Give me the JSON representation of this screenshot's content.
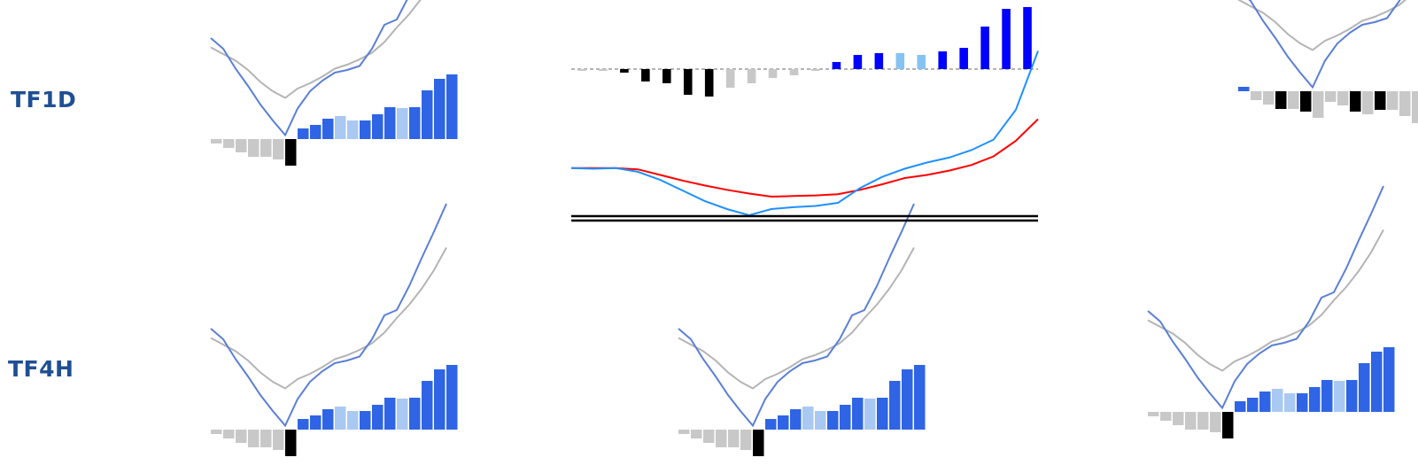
{
  "rows": [
    {
      "label": "TF1D"
    },
    {
      "label": "TF4H"
    }
  ],
  "colors": {
    "label": "#1f4f93",
    "macd_line": "#5a7fd6",
    "signal_line": "#b4b4b4",
    "hist_strong_up": "#2f65e4",
    "hist_weak_up": "#a9c9f2",
    "hist_strong_down": "#000000",
    "hist_weak_down": "#c8c8c8",
    "big_blue_bar": "#0000ff",
    "big_light_bar": "#87c3f2",
    "big_macd_line": "#1e90ff",
    "big_signal_line": "#ff0000"
  },
  "chart_data": [
    {
      "type": "bar+line",
      "id": "small_macd",
      "histogram": [
        0.5,
        1,
        1.5,
        2,
        2,
        2.3,
        3,
        1.2,
        1.6,
        2.3,
        2.6,
        2.1,
        2.1,
        2.8,
        3.6,
        3.5,
        3.6,
        5.5,
        6.8,
        7.3
      ],
      "hist_colors": [
        "wd",
        "wd",
        "wd",
        "wd",
        "wd",
        "wd",
        "sd",
        "su",
        "su",
        "su",
        "wu",
        "wu",
        "su",
        "su",
        "su",
        "wu",
        "su",
        "su",
        "su",
        "su"
      ],
      "hist_signs": [
        -1,
        -1,
        -1,
        -1,
        -1,
        -1,
        -1,
        1,
        1,
        1,
        1,
        1,
        1,
        1,
        1,
        1,
        1,
        1,
        1,
        1
      ],
      "macd": [
        6.6,
        5.8,
        4.3,
        3.0,
        1.6,
        0.4,
        -0.7,
        1.3,
        2.6,
        3.4,
        4.0,
        4.2,
        4.5,
        5.8,
        7.6,
        8.0,
        9.8,
        11.9,
        13.9,
        16.0
      ],
      "signal": [
        5.9,
        5.4,
        4.9,
        4.2,
        3.3,
        2.6,
        2.1,
        2.8,
        3.2,
        3.7,
        4.3,
        4.6,
        5.0,
        5.5,
        6.3,
        7.4,
        8.4,
        9.6,
        11.0,
        12.7
      ]
    },
    {
      "type": "bar+line",
      "id": "large_macd",
      "histogram": [
        0.05,
        0.05,
        0.2,
        0.7,
        0.8,
        1.45,
        1.55,
        1.05,
        0.8,
        0.5,
        0.35,
        0.1,
        0.4,
        0.8,
        0.9,
        0.9,
        0.8,
        1.0,
        1.2,
        2.4,
        3.4,
        3.5
      ],
      "hist_signs": [
        -1,
        -1,
        -1,
        -1,
        -1,
        -1,
        -1,
        -1,
        -1,
        -1,
        -1,
        -1,
        1,
        1,
        1,
        1,
        1,
        1,
        1,
        1,
        1,
        1
      ],
      "hist_colors": [
        "wd",
        "wd",
        "sd",
        "sd",
        "sd",
        "sd",
        "sd",
        "wd",
        "wd",
        "wd",
        "wd",
        "wd",
        "bu",
        "bu",
        "bu",
        "lu",
        "lu",
        "bu",
        "bu",
        "bu",
        "bu",
        "bu"
      ],
      "macd": [
        8.6,
        8.5,
        8.6,
        8.0,
        6.7,
        5.0,
        3.3,
        2.0,
        1.0,
        2.0,
        2.3,
        2.5,
        3.0,
        5.4,
        7.2,
        8.5,
        9.5,
        10.3,
        11.5,
        13.2,
        18.0,
        27.5
      ],
      "signal": [
        8.6,
        8.6,
        8.6,
        8.4,
        7.5,
        6.6,
        5.8,
        5.1,
        4.5,
        4.0,
        4.1,
        4.2,
        4.4,
        5.1,
        6.0,
        7.0,
        7.5,
        8.2,
        9.1,
        10.5,
        13.0,
        16.5
      ]
    }
  ]
}
